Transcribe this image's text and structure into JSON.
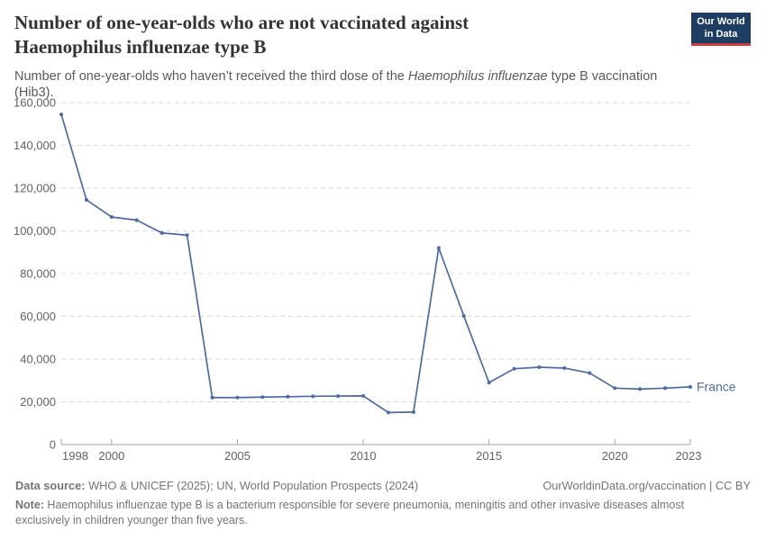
{
  "header": {
    "title_line1": "Number of one-year-olds who are not vaccinated against",
    "title_line2": "Haemophilus influenzae type B",
    "subtitle_prefix": "Number of one-year-olds who haven’t received the third dose of the ",
    "subtitle_italic": "Haemophilus influenzae",
    "subtitle_suffix": " type B vaccination (Hib3)."
  },
  "logo": {
    "line1": "Our World",
    "line2": "in Data"
  },
  "colors": {
    "line": "#4a6aa8",
    "logo_bg": "#1d3d63",
    "logo_stripe": "#cc3b45",
    "grid": "#d9d9d9",
    "axis": "#a5a5a5",
    "tick_label": "#616161",
    "title": "#333333",
    "subtitle": "#595959",
    "footer": "#757575"
  },
  "chart_data": {
    "type": "line",
    "title": "Number of one-year-olds who are not vaccinated against Haemophilus influenzae type B",
    "subtitle": "Number of one-year-olds who haven't received the third dose of the Haemophilus influenzae type B vaccination (Hib3).",
    "xlabel": "",
    "ylabel": "",
    "x": [
      1998,
      1999,
      2000,
      2001,
      2002,
      2003,
      2004,
      2005,
      2006,
      2007,
      2008,
      2009,
      2010,
      2011,
      2012,
      2013,
      2014,
      2015,
      2016,
      2017,
      2018,
      2019,
      2020,
      2021,
      2022,
      2023
    ],
    "series": [
      {
        "name": "France",
        "color": "#4a6aa8",
        "values": [
          154500,
          114500,
          106500,
          105000,
          99000,
          98000,
          22000,
          22000,
          22200,
          22400,
          22600,
          22700,
          22800,
          15000,
          15200,
          92000,
          60200,
          29000,
          35500,
          36200,
          35800,
          33500,
          26400,
          26000,
          26400,
          27000
        ]
      }
    ],
    "x_ticks": [
      1998,
      2000,
      2005,
      2010,
      2015,
      2020,
      2023
    ],
    "y_ticks": [
      0,
      20000,
      40000,
      60000,
      80000,
      100000,
      120000,
      140000,
      160000
    ],
    "xlim": [
      1998,
      2023
    ],
    "ylim": [
      0,
      160000
    ],
    "grid": "horizontal-dashed",
    "legend": "end-of-line-label"
  },
  "footer": {
    "data_source_label": "Data source:",
    "data_source_value": " WHO & UNICEF (2025); UN, World Population Prospects (2024)",
    "attribution": "OurWorldinData.org/vaccination | CC BY",
    "note_label": "Note:",
    "note_value": " Haemophilus influenzae type B is a bacterium responsible for severe pneumonia, meningitis and other invasive diseases almost exclusively in children younger than five years."
  }
}
